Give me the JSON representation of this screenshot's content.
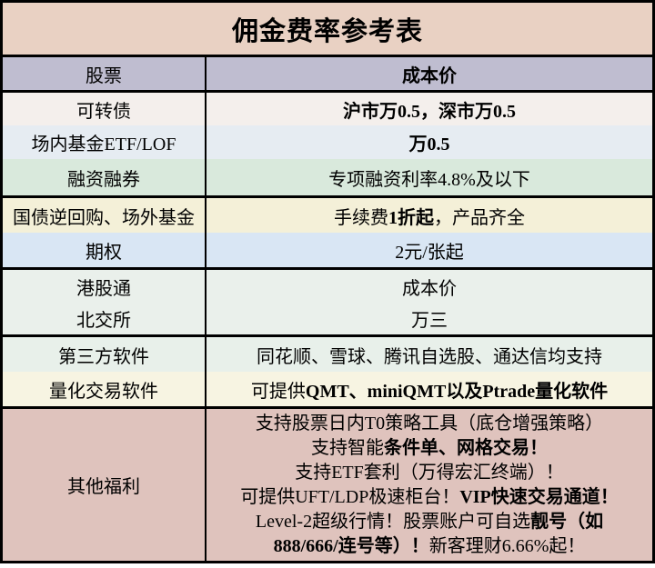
{
  "title": "佣金费率参考表",
  "colors": {
    "border": "#000000",
    "title_bg": "#e9d1c3",
    "header_bg": "#bfbdd0",
    "benefits_bg": "#dfc3bd",
    "row_bgs": [
      "#f4efec",
      "#e6ecf2",
      "#d9e9dc",
      "#f4f0d8",
      "#d9e6f4",
      "#eaf0eb",
      "#eaf0eb",
      "#e8f0ea",
      "#f7f4e2"
    ]
  },
  "header": {
    "label": "股票",
    "value": "成本价"
  },
  "rows": [
    {
      "label": "可转债",
      "pre": "",
      "bold": "沪市万0.5，深市万0.5",
      "post": ""
    },
    {
      "label": "场内基金ETF/LOF",
      "pre": "",
      "bold": "万0.5",
      "post": ""
    },
    {
      "label": "融资融券",
      "pre": "专项融资利率4.8%及以下",
      "bold": "",
      "post": ""
    },
    {
      "label": "国债逆回购、场外基金",
      "pre": "手续费",
      "bold": "1折起",
      "post": "，产品齐全"
    },
    {
      "label": "期权",
      "pre": "2元/张起",
      "bold": "",
      "post": ""
    },
    {
      "label": "港股通",
      "pre": "成本价",
      "bold": "",
      "post": ""
    },
    {
      "label": "北交所",
      "pre": "万三",
      "bold": "",
      "post": ""
    },
    {
      "label": "第三方软件",
      "pre": "同花顺、雪球、腾讯自选股、通达信均支持",
      "bold": "",
      "post": ""
    },
    {
      "label": "量化交易软件",
      "pre": "可提供",
      "bold": "QMT、miniQMT以及Ptrade量化软件",
      "post": ""
    }
  ],
  "benefits": {
    "label": "其他福利",
    "lines": [
      {
        "pre": "支持股票日内T0策略工具（底仓增强策略）",
        "bold": "",
        "post": ""
      },
      {
        "pre": "支持智能",
        "bold": "条件单、网格交易！",
        "post": ""
      },
      {
        "pre": "支持ETF套利（万得宏汇终端）！",
        "bold": "",
        "post": ""
      },
      {
        "pre": "可提供UFT/LDP极速柜台！",
        "bold": "VIP快速交易通道！",
        "post": ""
      },
      {
        "pre": "Level-2超级行情！股票账户可自选",
        "bold": "靓号（如",
        "post": ""
      },
      {
        "pre": "",
        "bold": "888/666/连号等）！",
        "post": "新客理财6.66%起！"
      }
    ]
  }
}
